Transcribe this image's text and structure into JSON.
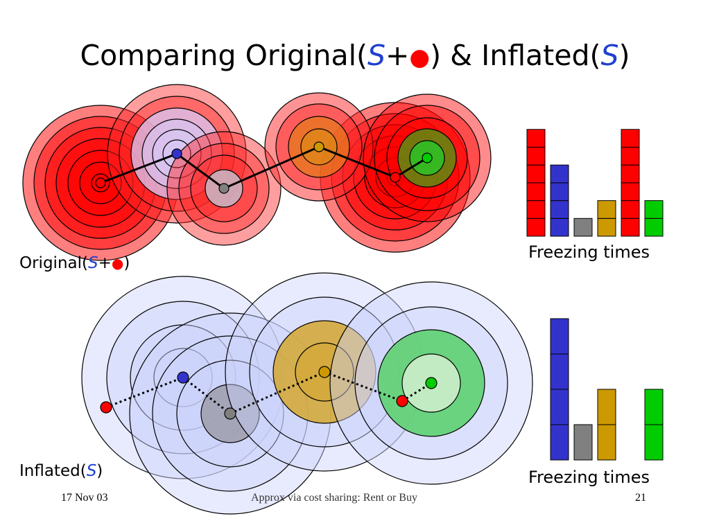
{
  "title": {
    "part1": "Comparing Original(",
    "s1": "S",
    "plus": "+",
    "dot": "●",
    "part2": ") & Inflated(",
    "s2": "S",
    "part3": ")"
  },
  "labels": {
    "original_prefix": "Original(",
    "original_s": "S",
    "original_plus": "+",
    "original_dot": "●",
    "original_suffix": ")",
    "inflated_prefix": "Inflated(",
    "inflated_s": "S",
    "inflated_suffix": ")",
    "freezing_top": "Freezing times",
    "freezing_bottom": "Freezing times"
  },
  "footer": {
    "date": "17 Nov 03",
    "center": "Approx via cost sharing: Rent or Buy",
    "page": "21"
  },
  "colors": {
    "red": "#ff0000",
    "blue": "#3333cc",
    "gray": "#808080",
    "gold": "#cc9900",
    "green": "#00cc00"
  },
  "chart_data": [
    {
      "type": "bar",
      "categories": [
        "red",
        "blue",
        "gray",
        "gold",
        "red",
        "green"
      ],
      "values": [
        6,
        4,
        1,
        2,
        6,
        2
      ],
      "colors": [
        "#ff0000",
        "#3333cc",
        "#808080",
        "#cc9900",
        "#ff0000",
        "#00cc00"
      ],
      "xlabel": "Freezing times",
      "ylim": [
        0,
        6
      ]
    },
    {
      "type": "bar",
      "categories": [
        "red",
        "blue",
        "gray",
        "gold",
        "red",
        "green"
      ],
      "values": [
        0,
        4,
        1,
        2,
        0,
        2
      ],
      "colors": [
        "#ff0000",
        "#3333cc",
        "#808080",
        "#cc9900",
        "#ff0000",
        "#00cc00"
      ],
      "xlabel": "Freezing times",
      "ylim": [
        0,
        4
      ]
    }
  ]
}
